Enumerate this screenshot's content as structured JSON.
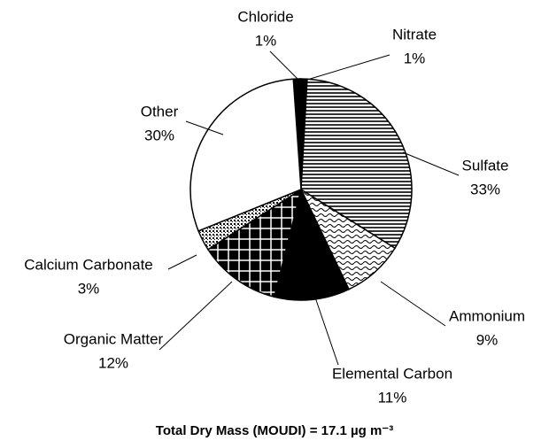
{
  "chart_data": {
    "type": "pie",
    "title": "Total Dry Mass (MOUDI) = 17.1 µg m⁻³",
    "categories": [
      "Chloride",
      "Nitrate",
      "Sulfate",
      "Ammonium",
      "Elemental Carbon",
      "Organic Matter",
      "Calcium Carbonate",
      "Other"
    ],
    "values": [
      1,
      1,
      33,
      9,
      11,
      12,
      3,
      30
    ],
    "value_labels": [
      "1%",
      "1%",
      "33%",
      "9%",
      "11%",
      "12%",
      "3%",
      "30%"
    ],
    "patterns": [
      "solid-black",
      "solid-black",
      "horizontal-lines",
      "waves",
      "solid-black",
      "grid",
      "dots",
      "white"
    ]
  }
}
